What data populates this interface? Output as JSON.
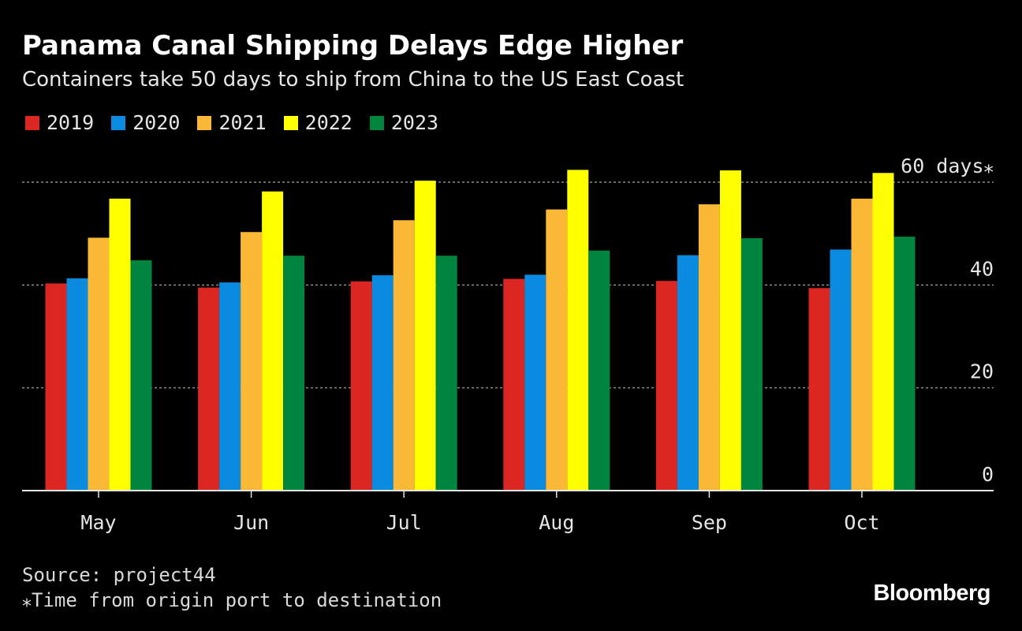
{
  "title": "Panama Canal Shipping Delays Edge Higher",
  "subtitle": "Containers take 50 days to ship from China to the US East Coast",
  "source": "Source: project44",
  "footnote": "⁎Time from origin port to destination",
  "brand": "Bloomberg",
  "chart_data": {
    "type": "bar",
    "categories": [
      "May",
      "Jun",
      "Jul",
      "Aug",
      "Sep",
      "Oct"
    ],
    "series": [
      {
        "name": "2019",
        "color": "#dc2622",
        "values": [
          40.3,
          39.5,
          40.7,
          41.2,
          40.8,
          39.4
        ]
      },
      {
        "name": "2020",
        "color": "#0a8be0",
        "values": [
          41.3,
          40.5,
          41.9,
          42.0,
          45.8,
          46.9
        ]
      },
      {
        "name": "2021",
        "color": "#fbb836",
        "values": [
          49.2,
          50.3,
          52.6,
          54.7,
          55.7,
          56.8
        ]
      },
      {
        "name": "2022",
        "color": "#ffff00",
        "values": [
          56.8,
          58.2,
          60.3,
          62.4,
          62.3,
          61.8
        ]
      },
      {
        "name": "2023",
        "color": "#00853e",
        "values": [
          44.8,
          45.7,
          45.7,
          46.7,
          49.1,
          49.4
        ]
      }
    ],
    "yticks": [
      {
        "value": 0,
        "label": "0"
      },
      {
        "value": 20,
        "label": "20"
      },
      {
        "value": 40,
        "label": "40"
      },
      {
        "value": 60,
        "label": "60 days⁎"
      }
    ],
    "ylim": [
      0,
      64
    ],
    "grid": true,
    "legend_position": "top-left",
    "xlabel": "",
    "ylabel": ""
  }
}
